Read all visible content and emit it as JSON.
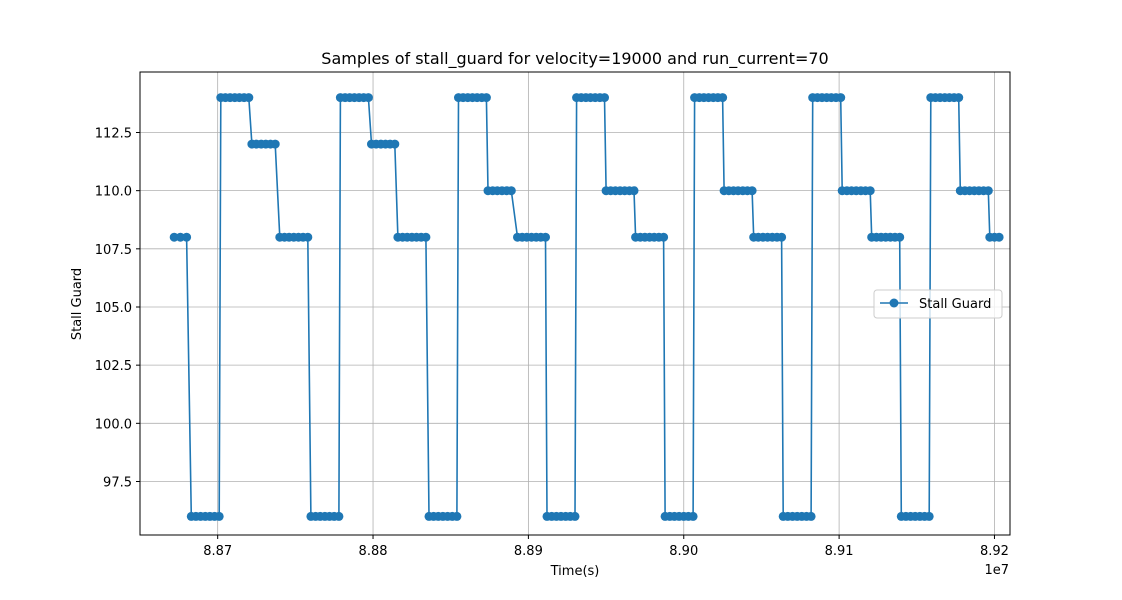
{
  "chart_data": {
    "type": "line",
    "title": "Samples of stall_guard for velocity=19000 and run_current=70",
    "xlabel": "Time(s)",
    "ylabel": "Stall Guard",
    "x_offset_label": "1e7",
    "x_scale": 10000000,
    "xlim": [
      88650000,
      89210000
    ],
    "ylim": [
      95.2,
      115.1
    ],
    "xticks": [
      88700000,
      88800000,
      88900000,
      89000000,
      89100000,
      89200000
    ],
    "xtick_labels": [
      "8.87",
      "8.88",
      "8.89",
      "8.90",
      "8.91",
      "8.92"
    ],
    "yticks": [
      97.5,
      100.0,
      102.5,
      105.0,
      107.5,
      110.0,
      112.5
    ],
    "ytick_labels": [
      "97.5",
      "100.0",
      "102.5",
      "105.0",
      "107.5",
      "110.0",
      "112.5"
    ],
    "grid": true,
    "legend_position": "center-right",
    "color": "#1f77b4",
    "series": [
      {
        "name": "Stall Guard",
        "marker": "circle",
        "segments": [
          {
            "value": 108,
            "x": [
              88672000,
              88676000,
              88680000
            ]
          },
          {
            "value": 96,
            "x": [
              88683000,
              88686000,
              88689000,
              88692000,
              88695000,
              88698000,
              88701000
            ]
          },
          {
            "value": 114,
            "x": [
              88702000,
              88705000,
              88708000,
              88711000,
              88714000,
              88717000,
              88720000
            ]
          },
          {
            "value": 112,
            "x": [
              88722000,
              88725000,
              88728000,
              88731000,
              88734000,
              88737000
            ]
          },
          {
            "value": 108,
            "x": [
              88740000,
              88743000,
              88746000,
              88749000,
              88752000,
              88755000,
              88758000
            ]
          },
          {
            "value": 96,
            "x": [
              88760000,
              88763000,
              88766000,
              88769000,
              88772000,
              88775000,
              88778000
            ]
          },
          {
            "value": 114,
            "x": [
              88779000,
              88782000,
              88785000,
              88788000,
              88791000,
              88794000,
              88797000
            ]
          },
          {
            "value": 112,
            "x": [
              88799000,
              88802000,
              88805000,
              88808000,
              88811000,
              88814000
            ]
          },
          {
            "value": 108,
            "x": [
              88816000,
              88819000,
              88822000,
              88825000,
              88828000,
              88831000,
              88834000
            ]
          },
          {
            "value": 96,
            "x": [
              88836000,
              88839000,
              88842000,
              88845000,
              88848000,
              88851000,
              88854000
            ]
          },
          {
            "value": 114,
            "x": [
              88855000,
              88858000,
              88861000,
              88864000,
              88867000,
              88870000,
              88873000
            ]
          },
          {
            "value": 110,
            "x": [
              88874000,
              88877000,
              88880000,
              88883000,
              88886000,
              88889000
            ]
          },
          {
            "value": 108,
            "x": [
              88893000,
              88896000,
              88899000,
              88902000,
              88905000,
              88908000,
              88911000
            ]
          },
          {
            "value": 96,
            "x": [
              88912000,
              88915000,
              88918000,
              88921000,
              88924000,
              88927000,
              88930000
            ]
          },
          {
            "value": 114,
            "x": [
              88931000,
              88934000,
              88937000,
              88940000,
              88943000,
              88946000,
              88949000
            ]
          },
          {
            "value": 110,
            "x": [
              88950000,
              88953000,
              88956000,
              88959000,
              88962000,
              88965000,
              88968000
            ]
          },
          {
            "value": 108,
            "x": [
              88969000,
              88972000,
              88975000,
              88978000,
              88981000,
              88984000,
              88987000
            ]
          },
          {
            "value": 96,
            "x": [
              88988000,
              88991000,
              88994000,
              88997000,
              89000000,
              89003000,
              89006000
            ]
          },
          {
            "value": 114,
            "x": [
              89007000,
              89010000,
              89013000,
              89016000,
              89019000,
              89022000,
              89025000
            ]
          },
          {
            "value": 110,
            "x": [
              89026000,
              89029000,
              89032000,
              89035000,
              89038000,
              89041000,
              89044000
            ]
          },
          {
            "value": 108,
            "x": [
              89045000,
              89048000,
              89051000,
              89054000,
              89057000,
              89060000,
              89063000
            ]
          },
          {
            "value": 96,
            "x": [
              89064000,
              89067000,
              89070000,
              89073000,
              89076000,
              89079000,
              89082000
            ]
          },
          {
            "value": 114,
            "x": [
              89083000,
              89086000,
              89089000,
              89092000,
              89095000,
              89098000,
              89101000
            ]
          },
          {
            "value": 110,
            "x": [
              89102000,
              89105000,
              89108000,
              89111000,
              89114000,
              89117000,
              89120000
            ]
          },
          {
            "value": 108,
            "x": [
              89121000,
              89124000,
              89127000,
              89130000,
              89133000,
              89136000,
              89139000
            ]
          },
          {
            "value": 96,
            "x": [
              89140000,
              89143000,
              89146000,
              89149000,
              89152000,
              89155000,
              89158000
            ]
          },
          {
            "value": 114,
            "x": [
              89159000,
              89162000,
              89165000,
              89168000,
              89171000,
              89174000,
              89177000
            ]
          },
          {
            "value": 110,
            "x": [
              89178000,
              89181000,
              89184000,
              89187000,
              89190000,
              89193000,
              89196000
            ]
          },
          {
            "value": 108,
            "x": [
              89197000,
              89200000,
              89203000
            ]
          }
        ]
      }
    ]
  }
}
